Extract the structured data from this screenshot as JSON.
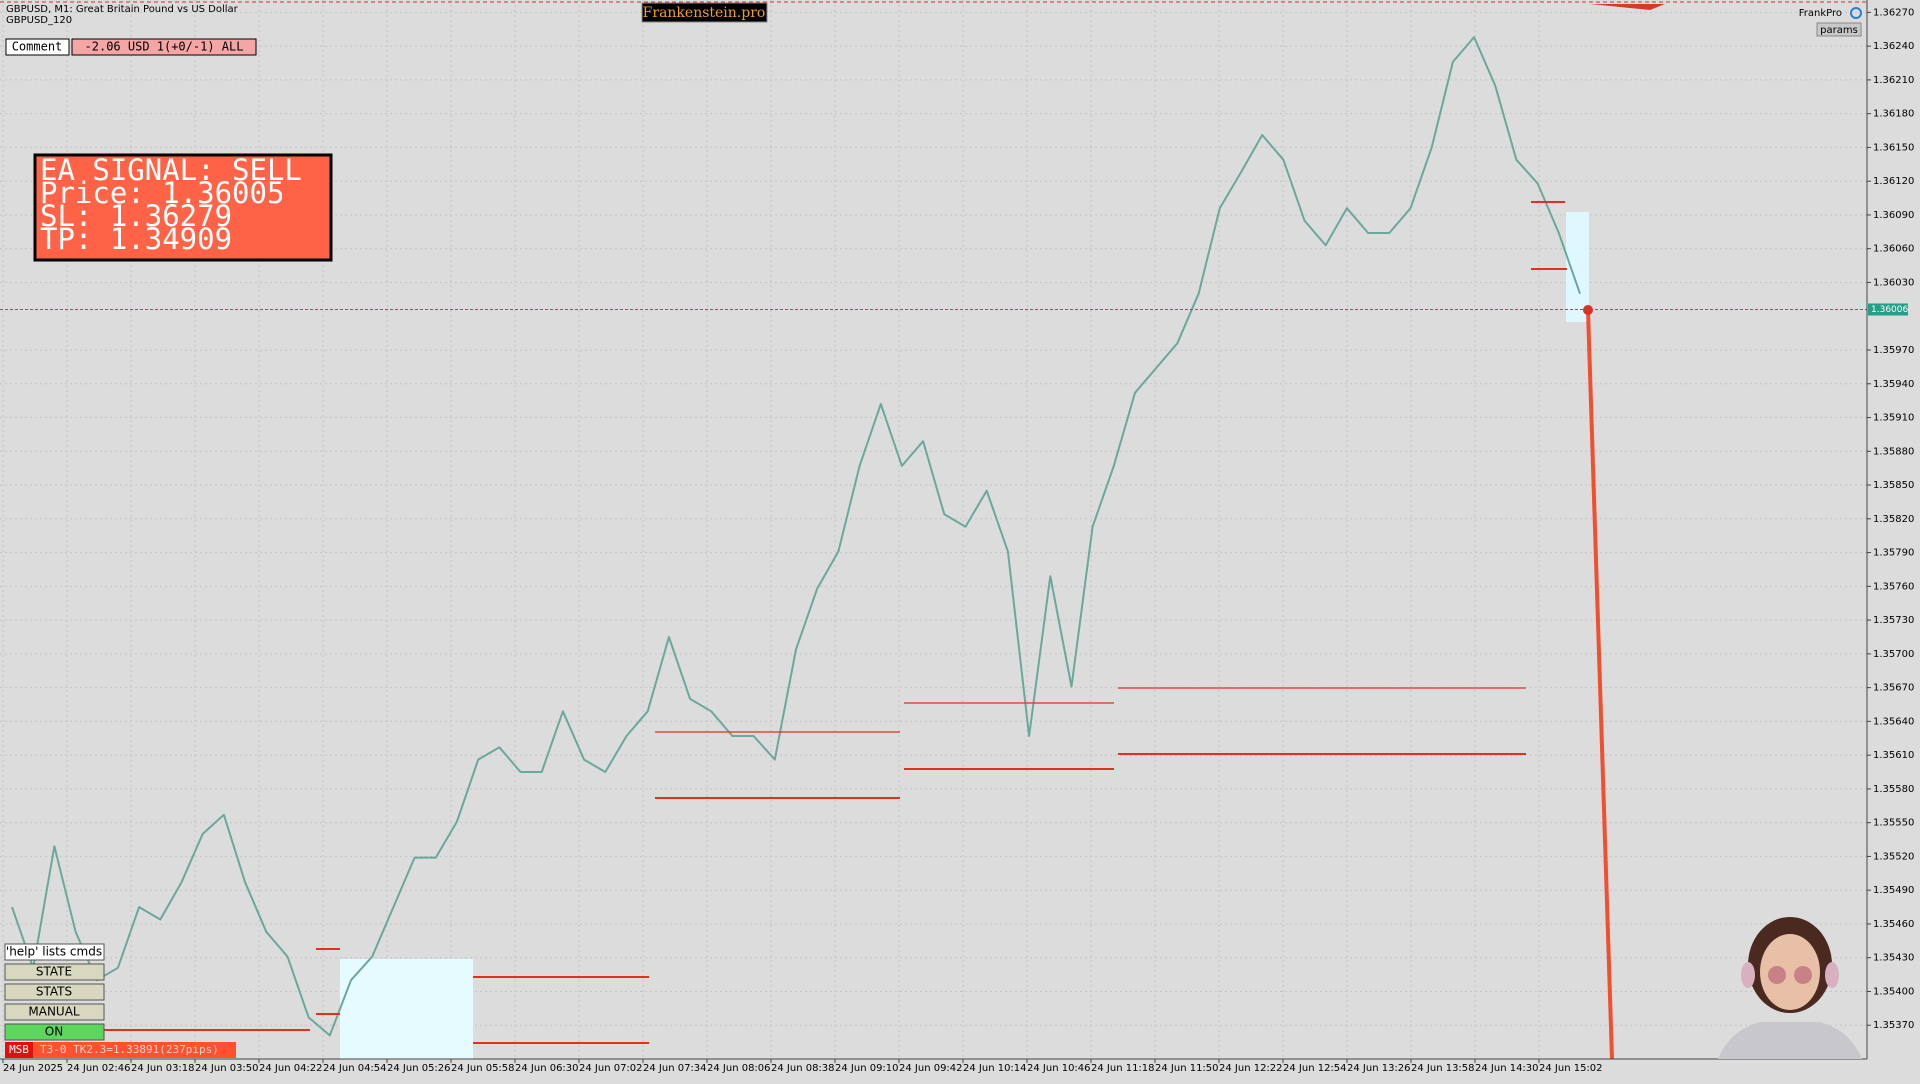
{
  "header": {
    "symbol": "GBPUSD, M1:  Great Britain Pound vs US Dollar",
    "subtitle": "GBPUSD_120",
    "brand": "Frankenstein.pro",
    "user": "FrankPro",
    "params": "params"
  },
  "comment": {
    "label": "Comment",
    "text": "-2.06 USD 1(+0/-1) ALL"
  },
  "signal": {
    "lines": [
      "EA SIGNAL: SELL",
      "Price: 1.36005",
      "SL:     1.36279",
      "TP:     1.34909"
    ]
  },
  "buttons": [
    "'help' lists cmds",
    "STATE",
    "STATS",
    "MANUAL",
    "ON"
  ],
  "status": {
    "tag": "MSB",
    "text": "T3-0  TK2.3=1.33891(237pips)"
  },
  "chart": {
    "ylim": [
      1.3534,
      1.36281
    ],
    "yticks": [
      {
        "value": 1.3627,
        "label": "1.36270"
      },
      {
        "value": 1.3624,
        "label": "1.36240"
      },
      {
        "value": 1.3621,
        "label": "1.36210"
      },
      {
        "value": 1.3618,
        "label": "1.36180"
      },
      {
        "value": 1.3615,
        "label": "1.36150"
      },
      {
        "value": 1.3612,
        "label": "1.36120"
      },
      {
        "value": 1.3609,
        "label": "1.36090"
      },
      {
        "value": 1.3606,
        "label": "1.36060"
      },
      {
        "value": 1.3603,
        "label": "1.36030"
      },
      {
        "value": 1.3597,
        "label": "1.35970"
      },
      {
        "value": 1.3594,
        "label": "1.35940"
      },
      {
        "value": 1.3591,
        "label": "1.35910"
      },
      {
        "value": 1.3588,
        "label": "1.35880"
      },
      {
        "value": 1.3585,
        "label": "1.35850"
      },
      {
        "value": 1.3582,
        "label": "1.35820"
      },
      {
        "value": 1.3579,
        "label": "1.35790"
      },
      {
        "value": 1.3576,
        "label": "1.35760"
      },
      {
        "value": 1.3573,
        "label": "1.35730"
      },
      {
        "value": 1.357,
        "label": "1.35700"
      },
      {
        "value": 1.3567,
        "label": "1.35670"
      },
      {
        "value": 1.3564,
        "label": "1.35640"
      },
      {
        "value": 1.3561,
        "label": "1.35610"
      },
      {
        "value": 1.3558,
        "label": "1.35580"
      },
      {
        "value": 1.3555,
        "label": "1.35550"
      },
      {
        "value": 1.3552,
        "label": "1.35520"
      },
      {
        "value": 1.3549,
        "label": "1.35490"
      },
      {
        "value": 1.3546,
        "label": "1.35460"
      },
      {
        "value": 1.3543,
        "label": "1.35430"
      },
      {
        "value": 1.354,
        "label": "1.35400"
      },
      {
        "value": 1.3537,
        "label": "1.35370"
      }
    ],
    "current_price": {
      "value": 1.36006,
      "label": "1.36006"
    },
    "xticks": [
      "24 Jun 2025",
      "24 Jun 02:46",
      "24 Jun 03:18",
      "24 Jun 03:50",
      "24 Jun 04:22",
      "24 Jun 04:54",
      "24 Jun 05:26",
      "24 Jun 05:58",
      "24 Jun 06:30",
      "24 Jun 07:02",
      "24 Jun 07:34",
      "24 Jun 08:06",
      "24 Jun 08:38",
      "24 Jun 09:10",
      "24 Jun 09:42",
      "24 Jun 10:14",
      "24 Jun 10:46",
      "24 Jun 11:18",
      "24 Jun 11:50",
      "24 Jun 12:22",
      "24 Jun 12:54",
      "24 Jun 13:26",
      "24 Jun 13:58",
      "24 Jun 14:30",
      "24 Jun 15:02"
    ],
    "price": [
      1.35475,
      1.35421,
      1.35529,
      1.35453,
      1.3541,
      1.35421,
      1.35475,
      1.35464,
      1.35497,
      1.3554,
      1.35557,
      1.35497,
      1.35453,
      1.35431,
      1.35377,
      1.35361,
      1.3541,
      1.35431,
      1.35475,
      1.35519,
      1.35519,
      1.35551,
      1.35606,
      1.35617,
      1.35595,
      1.35595,
      1.35649,
      1.35606,
      1.35595,
      1.35627,
      1.35649,
      1.35715,
      1.3566,
      1.35649,
      1.35627,
      1.35627,
      1.35606,
      1.35704,
      1.35758,
      1.35791,
      1.35867,
      1.35922,
      1.35867,
      1.35889,
      1.35824,
      1.35813,
      1.35845,
      1.35791,
      1.35627,
      1.35769,
      1.35671,
      1.35813,
      1.35867,
      1.35932,
      1.35954,
      1.35976,
      1.3602,
      1.36096,
      1.36128,
      1.36161,
      1.36139,
      1.36085,
      1.36063,
      1.36096,
      1.36074,
      1.36074,
      1.36096,
      1.3615,
      1.36226,
      1.36248,
      1.36205,
      1.36139,
      1.36118,
      1.36074,
      1.3602
    ]
  }
}
